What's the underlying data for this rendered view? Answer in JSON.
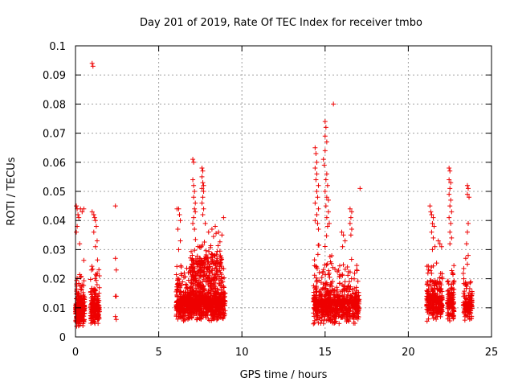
{
  "chart_data": {
    "type": "scatter",
    "title": "Day 201 of 2019, Rate Of TEC Index for receiver tmbo",
    "xlabel": "GPS time / hours",
    "ylabel": "ROTI / TECUs",
    "xlim": [
      0,
      25
    ],
    "ylim": [
      0,
      0.1
    ],
    "grid": true,
    "marker": "+",
    "series_color": "#ee0000",
    "x_ticks": [
      {
        "value": 0,
        "label": "0"
      },
      {
        "value": 5,
        "label": "5"
      },
      {
        "value": 10,
        "label": "10"
      },
      {
        "value": 15,
        "label": "15"
      },
      {
        "value": 20,
        "label": "20"
      },
      {
        "value": 25,
        "label": "25"
      }
    ],
    "y_ticks": [
      {
        "value": 0,
        "label": "0"
      },
      {
        "value": 0.01,
        "label": "0.01"
      },
      {
        "value": 0.02,
        "label": "0.02"
      },
      {
        "value": 0.03,
        "label": "0.03"
      },
      {
        "value": 0.04,
        "label": "0.04"
      },
      {
        "value": 0.05,
        "label": "0.05"
      },
      {
        "value": 0.06,
        "label": "0.06"
      },
      {
        "value": 0.07,
        "label": "0.07"
      },
      {
        "value": 0.08,
        "label": "0.08"
      },
      {
        "value": 0.09,
        "label": "0.09"
      },
      {
        "value": 0.1,
        "label": "0.1"
      }
    ],
    "clusters": [
      {
        "x0": 0.0,
        "x1": 0.55,
        "n": 260,
        "ymin": 0.003,
        "ymode": 0.01,
        "ymax": 0.028
      },
      {
        "x0": 0.9,
        "x1": 1.45,
        "n": 200,
        "ymin": 0.004,
        "ymode": 0.011,
        "ymax": 0.03
      },
      {
        "x0": 6.05,
        "x1": 9.0,
        "n": 1100,
        "ymin": 0.005,
        "ymode": 0.012,
        "ymax": 0.026
      },
      {
        "x0": 6.9,
        "x1": 8.8,
        "n": 220,
        "ymin": 0.015,
        "ymode": 0.025,
        "ymax": 0.036
      },
      {
        "x0": 14.3,
        "x1": 15.4,
        "n": 380,
        "ymin": 0.004,
        "ymode": 0.012,
        "ymax": 0.035
      },
      {
        "x0": 15.4,
        "x1": 17.05,
        "n": 420,
        "ymin": 0.004,
        "ymode": 0.012,
        "ymax": 0.028
      },
      {
        "x0": 21.1,
        "x1": 22.05,
        "n": 320,
        "ymin": 0.005,
        "ymode": 0.013,
        "ymax": 0.028
      },
      {
        "x0": 22.35,
        "x1": 22.75,
        "n": 140,
        "ymin": 0.004,
        "ymode": 0.012,
        "ymax": 0.03
      },
      {
        "x0": 23.3,
        "x1": 23.85,
        "n": 140,
        "ymin": 0.005,
        "ymode": 0.011,
        "ymax": 0.025
      }
    ],
    "points": [
      [
        0.05,
        0.045
      ],
      [
        0.1,
        0.044
      ],
      [
        0.15,
        0.042
      ],
      [
        0.2,
        0.041
      ],
      [
        0.1,
        0.038
      ],
      [
        0.05,
        0.036
      ],
      [
        0.3,
        0.044
      ],
      [
        0.4,
        0.043
      ],
      [
        0.5,
        0.044
      ],
      [
        0.25,
        0.032
      ],
      [
        1.0,
        0.094
      ],
      [
        1.05,
        0.093
      ],
      [
        1.0,
        0.043
      ],
      [
        1.1,
        0.042
      ],
      [
        1.15,
        0.041
      ],
      [
        1.2,
        0.04
      ],
      [
        1.25,
        0.038
      ],
      [
        1.1,
        0.036
      ],
      [
        1.3,
        0.033
      ],
      [
        1.2,
        0.031
      ],
      [
        2.4,
        0.045
      ],
      [
        2.4,
        0.027
      ],
      [
        2.45,
        0.023
      ],
      [
        2.4,
        0.014
      ],
      [
        2.45,
        0.014
      ],
      [
        2.4,
        0.007
      ],
      [
        2.45,
        0.006
      ],
      [
        6.1,
        0.044
      ],
      [
        6.2,
        0.044
      ],
      [
        6.25,
        0.042
      ],
      [
        6.3,
        0.04
      ],
      [
        6.15,
        0.037
      ],
      [
        6.3,
        0.033
      ],
      [
        6.2,
        0.03
      ],
      [
        7.05,
        0.061
      ],
      [
        7.1,
        0.06
      ],
      [
        7.05,
        0.054
      ],
      [
        7.1,
        0.052
      ],
      [
        7.15,
        0.05
      ],
      [
        7.1,
        0.048
      ],
      [
        7.2,
        0.046
      ],
      [
        7.15,
        0.044
      ],
      [
        7.2,
        0.043
      ],
      [
        7.1,
        0.041
      ],
      [
        7.05,
        0.039
      ],
      [
        7.15,
        0.037
      ],
      [
        7.6,
        0.058
      ],
      [
        7.65,
        0.057
      ],
      [
        7.6,
        0.055
      ],
      [
        7.65,
        0.053
      ],
      [
        7.7,
        0.052
      ],
      [
        7.6,
        0.051
      ],
      [
        7.7,
        0.05
      ],
      [
        7.65,
        0.048
      ],
      [
        7.6,
        0.046
      ],
      [
        7.7,
        0.044
      ],
      [
        7.65,
        0.042
      ],
      [
        8.0,
        0.036
      ],
      [
        8.2,
        0.037
      ],
      [
        8.4,
        0.038
      ],
      [
        8.6,
        0.036
      ],
      [
        8.8,
        0.035
      ],
      [
        8.9,
        0.041
      ],
      [
        7.8,
        0.039
      ],
      [
        14.4,
        0.065
      ],
      [
        14.45,
        0.063
      ],
      [
        14.5,
        0.06
      ],
      [
        14.4,
        0.058
      ],
      [
        14.5,
        0.056
      ],
      [
        14.45,
        0.054
      ],
      [
        14.6,
        0.052
      ],
      [
        14.5,
        0.05
      ],
      [
        14.55,
        0.048
      ],
      [
        14.4,
        0.046
      ],
      [
        14.6,
        0.044
      ],
      [
        14.5,
        0.042
      ],
      [
        14.4,
        0.04
      ],
      [
        14.55,
        0.039
      ],
      [
        14.6,
        0.037
      ],
      [
        14.9,
        0.061
      ],
      [
        15.0,
        0.074
      ],
      [
        15.05,
        0.072
      ],
      [
        15.0,
        0.069
      ],
      [
        15.1,
        0.067
      ],
      [
        15.0,
        0.064
      ],
      [
        14.95,
        0.059
      ],
      [
        15.1,
        0.056
      ],
      [
        15.05,
        0.054
      ],
      [
        15.15,
        0.052
      ],
      [
        15.0,
        0.05
      ],
      [
        15.1,
        0.048
      ],
      [
        15.2,
        0.047
      ],
      [
        15.05,
        0.045
      ],
      [
        15.2,
        0.043
      ],
      [
        15.1,
        0.041
      ],
      [
        15.25,
        0.039
      ],
      [
        15.15,
        0.038
      ],
      [
        15.5,
        0.08
      ],
      [
        16.0,
        0.036
      ],
      [
        16.1,
        0.035
      ],
      [
        16.2,
        0.033
      ],
      [
        16.05,
        0.031
      ],
      [
        16.5,
        0.044
      ],
      [
        16.6,
        0.043
      ],
      [
        16.55,
        0.041
      ],
      [
        16.5,
        0.039
      ],
      [
        16.6,
        0.037
      ],
      [
        16.55,
        0.035
      ],
      [
        17.1,
        0.051
      ],
      [
        21.3,
        0.045
      ],
      [
        21.35,
        0.043
      ],
      [
        21.4,
        0.042
      ],
      [
        21.5,
        0.041
      ],
      [
        21.45,
        0.039
      ],
      [
        21.55,
        0.038
      ],
      [
        21.4,
        0.036
      ],
      [
        21.5,
        0.034
      ],
      [
        21.6,
        0.031
      ],
      [
        21.45,
        0.03
      ],
      [
        21.8,
        0.033
      ],
      [
        21.9,
        0.032
      ],
      [
        22.0,
        0.031
      ],
      [
        22.45,
        0.058
      ],
      [
        22.5,
        0.057
      ],
      [
        22.45,
        0.054
      ],
      [
        22.55,
        0.053
      ],
      [
        22.5,
        0.051
      ],
      [
        22.45,
        0.049
      ],
      [
        22.55,
        0.047
      ],
      [
        22.5,
        0.045
      ],
      [
        22.6,
        0.043
      ],
      [
        22.45,
        0.041
      ],
      [
        22.55,
        0.039
      ],
      [
        22.5,
        0.036
      ],
      [
        22.6,
        0.034
      ],
      [
        22.5,
        0.032
      ],
      [
        23.55,
        0.052
      ],
      [
        23.6,
        0.051
      ],
      [
        23.55,
        0.049
      ],
      [
        23.65,
        0.048
      ],
      [
        23.6,
        0.039
      ],
      [
        23.55,
        0.036
      ],
      [
        23.5,
        0.032
      ],
      [
        23.6,
        0.028
      ],
      [
        23.45,
        0.027
      ],
      [
        23.55,
        0.025
      ]
    ]
  }
}
